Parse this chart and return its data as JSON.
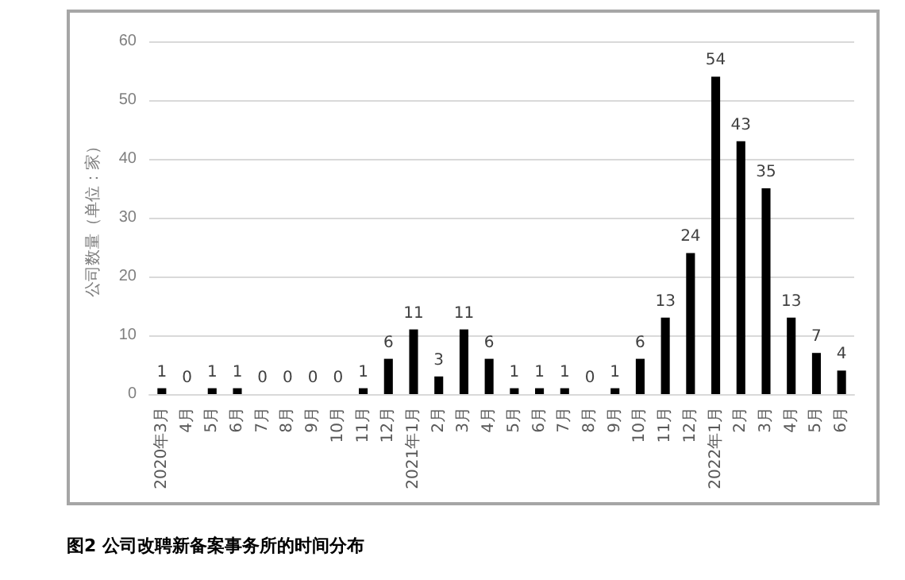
{
  "chart_data": {
    "type": "bar",
    "ylabel": "公司数量（单位：家）",
    "categories": [
      "2020年3月",
      "4月",
      "5月",
      "6月",
      "7月",
      "8月",
      "9月",
      "10月",
      "11月",
      "12月",
      "2021年1月",
      "2月",
      "3月",
      "4月",
      "5月",
      "6月",
      "7月",
      "8月",
      "9月",
      "10月",
      "11月",
      "12月",
      "2022年1月",
      "2月",
      "3月",
      "4月",
      "5月",
      "6月"
    ],
    "values": [
      1,
      0,
      1,
      1,
      0,
      0,
      0,
      0,
      1,
      6,
      11,
      3,
      11,
      6,
      1,
      1,
      1,
      0,
      1,
      6,
      13,
      24,
      54,
      43,
      35,
      13,
      7,
      4
    ],
    "color": "#000000",
    "ylim": [
      0,
      60
    ],
    "yticks": [
      0,
      10,
      20,
      30,
      40,
      50,
      60
    ],
    "grid": "y",
    "data_labels": true,
    "annotations": [
      "图2  公司改聘新备案事务所的时间分布"
    ]
  }
}
